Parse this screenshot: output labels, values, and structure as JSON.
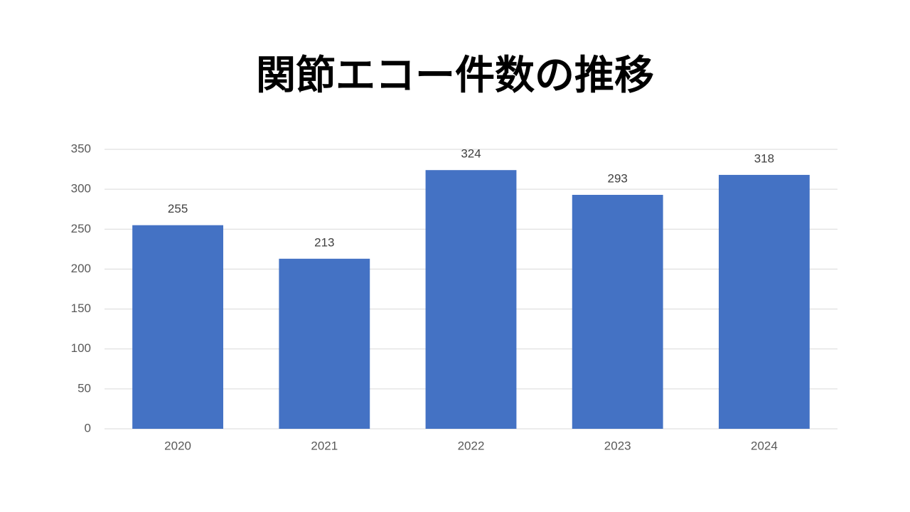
{
  "chart_data": {
    "type": "bar",
    "title": "関節エコー件数の推移",
    "categories": [
      "2020",
      "2021",
      "2022",
      "2023",
      "2024"
    ],
    "values": [
      255,
      213,
      324,
      293,
      318
    ],
    "color": "#4472c4",
    "ylim": [
      0,
      350
    ],
    "yticks": [
      0,
      50,
      100,
      150,
      200,
      250,
      300,
      350
    ],
    "grid": true
  }
}
